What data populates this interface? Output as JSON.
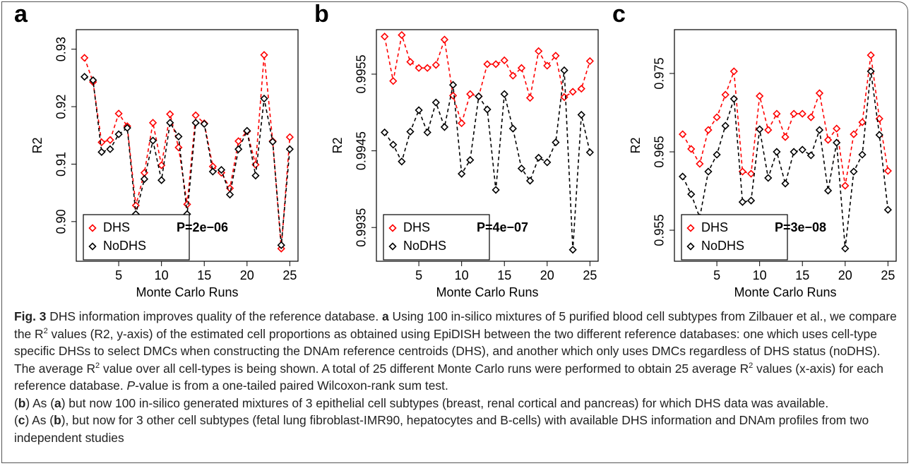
{
  "chart_data": [
    {
      "type": "line",
      "panel_label": "a",
      "annotation": "P=2e−06",
      "x_label": "Monte Carlo Runs",
      "y_label": "R2",
      "x": [
        1,
        2,
        3,
        4,
        5,
        6,
        7,
        8,
        9,
        10,
        11,
        12,
        13,
        14,
        15,
        16,
        17,
        18,
        19,
        20,
        21,
        22,
        23,
        24,
        25
      ],
      "xlim": [
        0.04,
        25.96
      ],
      "xticks": [
        5,
        10,
        15,
        20,
        25
      ],
      "ylim": [
        0.8931,
        0.9334
      ],
      "yticks": [
        {
          "value": 0.9,
          "label": "0.90"
        },
        0.91,
        0.92,
        0.93
      ],
      "legend": "bottomleft",
      "marker": "diamond",
      "line_style": "dashed",
      "series": [
        {
          "name": "DHS",
          "color": "#ff0000",
          "values": [
            0.9285,
            0.9243,
            0.9138,
            0.9142,
            0.9188,
            0.9166,
            0.9028,
            0.9085,
            0.9172,
            0.9098,
            0.9187,
            0.9129,
            0.903,
            0.9185,
            0.9171,
            0.9096,
            0.9085,
            0.9058,
            0.914,
            0.9157,
            0.9099,
            0.929,
            0.914,
            0.8953,
            0.9147
          ]
        },
        {
          "name": "NoDHS",
          "color": "#000000",
          "values": [
            0.9252,
            0.9246,
            0.9121,
            0.9126,
            0.9152,
            0.9163,
            0.9013,
            0.9074,
            0.9141,
            0.9072,
            0.9172,
            0.9148,
            0.9013,
            0.9172,
            0.917,
            0.9087,
            0.909,
            0.9047,
            0.9126,
            0.9158,
            0.908,
            0.9214,
            0.9139,
            0.8959,
            0.9126
          ]
        }
      ]
    },
    {
      "type": "line",
      "panel_label": "b",
      "annotation": "P=4e−07",
      "x_label": "Monte Carlo Runs",
      "y_label": "R2",
      "x": [
        1,
        2,
        3,
        4,
        5,
        6,
        7,
        8,
        9,
        10,
        11,
        12,
        13,
        14,
        15,
        16,
        17,
        18,
        19,
        20,
        21,
        22,
        23,
        24,
        25
      ],
      "xlim": [
        0.04,
        25.96
      ],
      "xticks": [
        5,
        10,
        15,
        20,
        25
      ],
      "ylim": [
        0.99306,
        0.99608
      ],
      "yticks": [
        0.9935,
        0.9945,
        0.9955
      ],
      "legend": "bottomleft",
      "marker": "diamond",
      "line_style": "dashed",
      "series": [
        {
          "name": "DHS",
          "color": "#ff0000",
          "values": [
            0.99599,
            0.99541,
            0.99601,
            0.99566,
            0.99558,
            0.99558,
            0.99562,
            0.99595,
            0.99522,
            0.99486,
            0.99524,
            0.99521,
            0.99563,
            0.99563,
            0.99568,
            0.99548,
            0.99558,
            0.99519,
            0.9958,
            0.99561,
            0.99574,
            0.9952,
            0.99527,
            0.99531,
            0.99567
          ]
        },
        {
          "name": "NoDHS",
          "color": "#000000",
          "values": [
            0.99474,
            0.99458,
            0.99436,
            0.99475,
            0.99503,
            0.99474,
            0.99513,
            0.99481,
            0.99536,
            0.9942,
            0.99438,
            0.99521,
            0.99504,
            0.99399,
            0.99524,
            0.99479,
            0.99427,
            0.99411,
            0.99441,
            0.99435,
            0.99461,
            0.99555,
            0.99321,
            0.99497,
            0.99448
          ]
        }
      ]
    },
    {
      "type": "line",
      "panel_label": "c",
      "annotation": "P=3e−08",
      "x_label": "Monte Carlo Runs",
      "y_label": "R2",
      "x": [
        1,
        2,
        3,
        4,
        5,
        6,
        7,
        8,
        9,
        10,
        11,
        12,
        13,
        14,
        15,
        16,
        17,
        18,
        19,
        20,
        21,
        22,
        23,
        24,
        25
      ],
      "xlim": [
        0.04,
        25.96
      ],
      "xticks": [
        5,
        10,
        15,
        20,
        25
      ],
      "ylim": [
        0.95104,
        0.98059
      ],
      "yticks": [
        0.955,
        0.965,
        0.975
      ],
      "legend": "bottomleft",
      "marker": "diamond",
      "line_style": "dashed",
      "series": [
        {
          "name": "DHS",
          "color": "#ff0000",
          "values": [
            0.96725,
            0.96536,
            0.96347,
            0.96779,
            0.96941,
            0.97229,
            0.97527,
            0.96248,
            0.96221,
            0.97212,
            0.96779,
            0.96986,
            0.96689,
            0.96986,
            0.96986,
            0.96941,
            0.97248,
            0.96653,
            0.96797,
            0.96068,
            0.96725,
            0.96878,
            0.97734,
            0.96923,
            0.96257
          ]
        },
        {
          "name": "NoDHS",
          "color": "#000000",
          "values": [
            0.96185,
            0.95959,
            0.95662,
            0.96248,
            0.96464,
            0.96833,
            0.97176,
            0.9586,
            0.95878,
            0.96788,
            0.96167,
            0.965,
            0.96095,
            0.965,
            0.96527,
            0.96455,
            0.96779,
            0.96005,
            0.96617,
            0.95266,
            0.96248,
            0.96464,
            0.97527,
            0.96716,
            0.95761
          ]
        }
      ]
    }
  ],
  "caption": [
    "Fig. 3",
    " DHS information improves quality of the reference database. ",
    "a",
    " Using 100 in-silico mixtures of 5 purified blood cell subtypes from Zilbauer et al., we compare the R",
    "2",
    " values (R2, y-axis) of the estimated cell proportions as obtained using EpiDISH between the two different reference databases: one which uses cell-type specific DHSs to select DMCs when constructing the DNAm reference centroids (DHS), and another which only uses DMCs regardless of DHS status (noDHS). The average R",
    "2",
    " value over all cell-types is being shown. A total of 25 different Monte Carlo runs were performed to obtain 25 average R",
    "2",
    " values (x-axis) for each reference database. ",
    "P",
    "-value is from a one-tailed paired Wilcoxon-rank sum test.",
    "(",
    "b",
    ") As (",
    "a",
    ") but now 100 in-silico generated mixtures of 3 epithelial cell subtypes (breast, renal cortical and pancreas) for which DHS data was available.",
    "(",
    "c",
    ") As (",
    "b",
    "), but now for 3 other cell subtypes (fetal lung fibroblast-IMR90, hepatocytes and B-cells) with available DHS information and DNAm profiles from two independent studies"
  ]
}
